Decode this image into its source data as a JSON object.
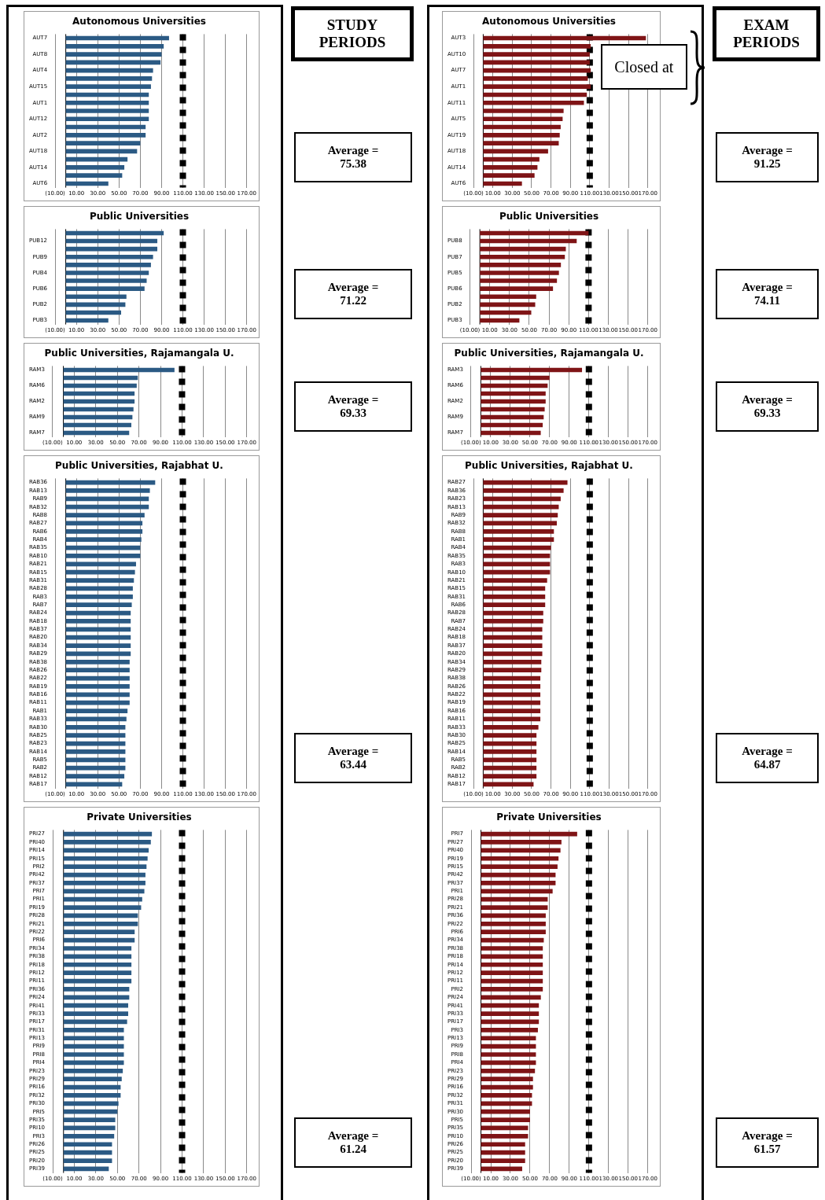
{
  "chart_data": [
    {
      "type": "other",
      "title": "STUDY PERIODS"
    },
    {
      "type": "bar",
      "orientation": "horizontal",
      "title": "Autonomous Universities",
      "categories": [
        "AUT7",
        null,
        "AUT8",
        null,
        "AUT4",
        null,
        "AUT15",
        null,
        "AUT1",
        null,
        "AUT12",
        null,
        "AUT2",
        null,
        "AUT18",
        null,
        "AUT14",
        null,
        "AUT6"
      ],
      "values": [
        97,
        92,
        90,
        89,
        82,
        81,
        80,
        78,
        78,
        78,
        78,
        75,
        75,
        70,
        67,
        58,
        55,
        53,
        40
      ],
      "color": "#2b5a84",
      "xlim": [
        -10,
        170
      ],
      "xticks": [
        {
          "value": -10,
          "label": "(10.00)"
        },
        {
          "value": 10,
          "label": "10.00"
        },
        {
          "value": 30,
          "label": "30.00"
        },
        {
          "value": 50,
          "label": "50.00"
        },
        {
          "value": 70,
          "label": "70.00"
        },
        {
          "value": 90,
          "label": "90.00"
        },
        {
          "value": 110,
          "label": "110.00"
        },
        {
          "value": 130,
          "label": "130.00"
        },
        {
          "value": 150,
          "label": "150.00"
        },
        {
          "value": 170,
          "label": "170.00"
        }
      ],
      "grid": "x",
      "ref_lines": [
        {
          "axis": "x",
          "value": 110,
          "color": "#000000",
          "line_style": "dashed"
        }
      ],
      "annotations": [
        "Average = 75.38"
      ]
    },
    {
      "type": "bar",
      "orientation": "horizontal",
      "title": "Public Universities",
      "categories": [
        null,
        "PUB12",
        null,
        "PUB9",
        null,
        "PUB4",
        null,
        "PUB6",
        null,
        "PUB2",
        null,
        "PUB3"
      ],
      "values": [
        92,
        86,
        86,
        82,
        80,
        78,
        76,
        74,
        57,
        56,
        52,
        40
      ],
      "color": "#2b5a84",
      "xlim": [
        -10,
        170
      ],
      "xticks": [
        {
          "value": -10,
          "label": "(10.00)"
        },
        {
          "value": 10,
          "label": "10.00"
        },
        {
          "value": 30,
          "label": "30.00"
        },
        {
          "value": 50,
          "label": "50.00"
        },
        {
          "value": 70,
          "label": "70.00"
        },
        {
          "value": 90,
          "label": "90.00"
        },
        {
          "value": 110,
          "label": "110.00"
        },
        {
          "value": 130,
          "label": "130.00"
        },
        {
          "value": 150,
          "label": "150.00"
        },
        {
          "value": 170,
          "label": "170.00"
        }
      ],
      "grid": "x",
      "ref_lines": [
        {
          "axis": "x",
          "value": 110,
          "color": "#000000",
          "line_style": "dashed"
        }
      ],
      "annotations": [
        "Average = 71.22"
      ]
    },
    {
      "type": "bar",
      "orientation": "horizontal",
      "title": "Public Universities, Rajamangala U.",
      "categories": [
        "RAM3",
        null,
        "RAM6",
        null,
        "RAM2",
        null,
        "RAM9",
        null,
        "RAM7"
      ],
      "values": [
        103,
        69,
        68,
        66,
        66,
        65,
        64,
        63,
        61
      ],
      "color": "#2b5a84",
      "xlim": [
        -10,
        170
      ],
      "xticks": [
        {
          "value": -10,
          "label": "(10.00)"
        },
        {
          "value": 10,
          "label": "10.00"
        },
        {
          "value": 30,
          "label": "30.00"
        },
        {
          "value": 50,
          "label": "50.00"
        },
        {
          "value": 70,
          "label": "70.00"
        },
        {
          "value": 90,
          "label": "90.00"
        },
        {
          "value": 110,
          "label": "110.00"
        },
        {
          "value": 130,
          "label": "130.00"
        },
        {
          "value": 150,
          "label": "150.00"
        },
        {
          "value": 170,
          "label": "170.00"
        }
      ],
      "grid": "x",
      "ref_lines": [
        {
          "axis": "x",
          "value": 110,
          "color": "#000000",
          "line_style": "dashed"
        }
      ],
      "annotations": [
        "Average = 69.33"
      ]
    },
    {
      "type": "bar",
      "orientation": "horizontal",
      "title": "Public Universities, Rajabhat U.",
      "categories": [
        "RAB36",
        "RAB13",
        "RAB9",
        "RAB32",
        "RAB8",
        "RAB27",
        "RAB6",
        "RAB4",
        "RAB35",
        "RAB10",
        "RAB21",
        "RAB15",
        "RAB31",
        "RAB28",
        "RAB3",
        "RAB7",
        "RAB24",
        "RAB18",
        "RAB37",
        "RAB20",
        "RAB34",
        "RAB29",
        "RAB38",
        "RAB26",
        "RAB22",
        "RAB19",
        "RAB16",
        "RAB11",
        "RAB1",
        "RAB33",
        "RAB30",
        "RAB25",
        "RAB23",
        "RAB14",
        "RAB5",
        "RAB2",
        "RAB12",
        "RAB17"
      ],
      "values": [
        84,
        79,
        78,
        78,
        74,
        72,
        72,
        71,
        70,
        70,
        66,
        65,
        64,
        63,
        63,
        62,
        61,
        61,
        61,
        61,
        61,
        61,
        60,
        60,
        60,
        60,
        60,
        60,
        58,
        57,
        56,
        56,
        56,
        56,
        56,
        56,
        55,
        53
      ],
      "color": "#2b5a84",
      "xlim": [
        -10,
        170
      ],
      "xticks": [
        {
          "value": -10,
          "label": "(10.00)"
        },
        {
          "value": 10,
          "label": "10.00"
        },
        {
          "value": 30,
          "label": "30.00"
        },
        {
          "value": 50,
          "label": "50.00"
        },
        {
          "value": 70,
          "label": "70.00"
        },
        {
          "value": 90,
          "label": "90.00"
        },
        {
          "value": 110,
          "label": "110.00"
        },
        {
          "value": 130,
          "label": "130.00"
        },
        {
          "value": 150,
          "label": "150.00"
        },
        {
          "value": 170,
          "label": "170.00"
        }
      ],
      "grid": "x",
      "ref_lines": [
        {
          "axis": "x",
          "value": 110,
          "color": "#000000",
          "line_style": "dashed"
        }
      ],
      "annotations": [
        "Average = 63.44"
      ]
    },
    {
      "type": "bar",
      "orientation": "horizontal",
      "title": "Private Universities",
      "categories": [
        "PRI27",
        "PRI40",
        "PRI14",
        "PRI15",
        "PRI2",
        "PRI42",
        "PRI37",
        "PRI7",
        "PRI1",
        "PRI19",
        "PRI28",
        "PRI21",
        "PRI22",
        "PRI6",
        "PRI34",
        "PRI38",
        "PRI18",
        "PRI12",
        "PRI11",
        "PRI36",
        "PRI24",
        "PRI41",
        "PRI33",
        "PRI17",
        "PRI31",
        "PRI13",
        "PRI9",
        "PRI8",
        "PRI4",
        "PRI23",
        "PRI29",
        "PRI16",
        "PRI32",
        "PRI30",
        "PRI5",
        "PRI35",
        "PRI10",
        "PRI3",
        "PRI26",
        "PRI25",
        "PRI20",
        "PRI39"
      ],
      "values": [
        82,
        81,
        79,
        78,
        77,
        76,
        76,
        75,
        73,
        72,
        69,
        69,
        66,
        66,
        63,
        63,
        63,
        63,
        63,
        61,
        61,
        60,
        60,
        59,
        56,
        56,
        56,
        56,
        56,
        55,
        54,
        53,
        53,
        51,
        50,
        48,
        48,
        47,
        45,
        45,
        45,
        42
      ],
      "color": "#2b5a84",
      "xlim": [
        -10,
        170
      ],
      "xticks": [
        {
          "value": -10,
          "label": "(10.00)"
        },
        {
          "value": 10,
          "label": "10.00"
        },
        {
          "value": 30,
          "label": "30.00"
        },
        {
          "value": 50,
          "label": "50.00"
        },
        {
          "value": 70,
          "label": "70.00"
        },
        {
          "value": 90,
          "label": "90.00"
        },
        {
          "value": 110,
          "label": "110.00"
        },
        {
          "value": 130,
          "label": "130.00"
        },
        {
          "value": 150,
          "label": "150.00"
        },
        {
          "value": 170,
          "label": "170.00"
        }
      ],
      "grid": "x",
      "ref_lines": [
        {
          "axis": "x",
          "value": 110,
          "color": "#000000",
          "line_style": "dashed"
        }
      ],
      "annotations": [
        "Average = 61.24"
      ]
    },
    {
      "type": "other",
      "title": "EXAM PERIODS"
    },
    {
      "type": "bar",
      "orientation": "horizontal",
      "title": "Autonomous Universities",
      "categories": [
        "AUT3",
        null,
        "AUT10",
        null,
        "AUT7",
        null,
        "AUT1",
        null,
        "AUT11",
        null,
        "AUT5",
        null,
        "AUT19",
        null,
        "AUT18",
        null,
        "AUT14",
        null,
        "AUT6"
      ],
      "values": [
        168,
        111,
        110,
        110,
        111,
        108,
        111,
        107,
        104,
        83,
        82,
        80,
        79,
        78,
        67,
        58,
        56,
        53,
        40
      ],
      "color": "#7f1416",
      "xlim": [
        -10,
        170
      ],
      "xticks": [
        {
          "value": -10,
          "label": "(10.00)"
        },
        {
          "value": 10,
          "label": "10.00"
        },
        {
          "value": 30,
          "label": "30.00"
        },
        {
          "value": 50,
          "label": "50.00"
        },
        {
          "value": 70,
          "label": "70.00"
        },
        {
          "value": 90,
          "label": "90.00"
        },
        {
          "value": 110,
          "label": "110.00"
        },
        {
          "value": 130,
          "label": "130.00"
        },
        {
          "value": 150,
          "label": "150.00"
        },
        {
          "value": 170,
          "label": "170.00"
        }
      ],
      "grid": "x",
      "ref_lines": [
        {
          "axis": "x",
          "value": 110,
          "color": "#000000",
          "line_style": "dashed"
        }
      ],
      "annotations": [
        {
          "text": "Closed at",
          "x": 110,
          "y": "AUT10"
        },
        "Average = 91.25"
      ]
    },
    {
      "type": "bar",
      "orientation": "horizontal",
      "title": "Public Universities",
      "categories": [
        null,
        "PUB8",
        null,
        "PUB7",
        null,
        "PUB5",
        null,
        "PUB6",
        null,
        "PUB2",
        null,
        "PUB3"
      ],
      "values": [
        110,
        98,
        87,
        86,
        82,
        80,
        78,
        74,
        57,
        56,
        52,
        40
      ],
      "color": "#7f1416",
      "xlim": [
        -10,
        170
      ],
      "xticks": [
        {
          "value": -10,
          "label": "(10.00)"
        },
        {
          "value": 10,
          "label": "10.00"
        },
        {
          "value": 30,
          "label": "30.00"
        },
        {
          "value": 50,
          "label": "50.00"
        },
        {
          "value": 70,
          "label": "70.00"
        },
        {
          "value": 90,
          "label": "90.00"
        },
        {
          "value": 110,
          "label": "110.00"
        },
        {
          "value": 130,
          "label": "130.00"
        },
        {
          "value": 150,
          "label": "150.00"
        },
        {
          "value": 170,
          "label": "170.00"
        }
      ],
      "grid": "x",
      "ref_lines": [
        {
          "axis": "x",
          "value": 110,
          "color": "#000000",
          "line_style": "dashed"
        }
      ],
      "annotations": [
        "Average = 74.11"
      ]
    },
    {
      "type": "bar",
      "orientation": "horizontal",
      "title": "Public Universities, Rajamangala U.",
      "categories": [
        "RAM3",
        null,
        "RAM6",
        null,
        "RAM2",
        null,
        "RAM9",
        null,
        "RAM7"
      ],
      "values": [
        103,
        70,
        68,
        66,
        66,
        65,
        64,
        63,
        61
      ],
      "color": "#7f1416",
      "xlim": [
        -10,
        170
      ],
      "xticks": [
        {
          "value": -10,
          "label": "(10.00)"
        },
        {
          "value": 10,
          "label": "10.00"
        },
        {
          "value": 30,
          "label": "30.00"
        },
        {
          "value": 50,
          "label": "50.00"
        },
        {
          "value": 70,
          "label": "70.00"
        },
        {
          "value": 90,
          "label": "90.00"
        },
        {
          "value": 110,
          "label": "110.00"
        },
        {
          "value": 130,
          "label": "130.00"
        },
        {
          "value": 150,
          "label": "150.00"
        },
        {
          "value": 170,
          "label": "170.00"
        }
      ],
      "grid": "x",
      "ref_lines": [
        {
          "axis": "x",
          "value": 110,
          "color": "#000000",
          "line_style": "dashed"
        }
      ],
      "annotations": [
        "Average = 69.33"
      ]
    },
    {
      "type": "bar",
      "orientation": "horizontal",
      "title": "Public Universities, Rajabhat U.",
      "categories": [
        "RAB27",
        "RAB36",
        "RAB23",
        "RAB13",
        "RAB9",
        "RAB32",
        "RAB8",
        "RAB1",
        "RAB4",
        "RAB35",
        "RAB3",
        "RAB10",
        "RAB21",
        "RAB15",
        "RAB31",
        "RAB6",
        "RAB28",
        "RAB7",
        "RAB24",
        "RAB18",
        "RAB37",
        "RAB20",
        "RAB34",
        "RAB29",
        "RAB38",
        "RAB26",
        "RAB22",
        "RAB19",
        "RAB16",
        "RAB11",
        "RAB33",
        "RAB30",
        "RAB25",
        "RAB14",
        "RAB5",
        "RAB2",
        "RAB12",
        "RAB17"
      ],
      "values": [
        87,
        83,
        80,
        78,
        77,
        76,
        73,
        73,
        70,
        69,
        69,
        69,
        66,
        64,
        64,
        64,
        62,
        62,
        61,
        61,
        61,
        61,
        60,
        60,
        59,
        59,
        59,
        59,
        59,
        59,
        57,
        55,
        55,
        55,
        55,
        55,
        55,
        52
      ],
      "color": "#7f1416",
      "xlim": [
        -10,
        170
      ],
      "xticks": [
        {
          "value": -10,
          "label": "(10.00)"
        },
        {
          "value": 10,
          "label": "10.00"
        },
        {
          "value": 30,
          "label": "30.00"
        },
        {
          "value": 50,
          "label": "50.00"
        },
        {
          "value": 70,
          "label": "70.00"
        },
        {
          "value": 90,
          "label": "90.00"
        },
        {
          "value": 110,
          "label": "110.00"
        },
        {
          "value": 130,
          "label": "130.00"
        },
        {
          "value": 150,
          "label": "150.00"
        },
        {
          "value": 170,
          "label": "170.00"
        }
      ],
      "grid": "x",
      "ref_lines": [
        {
          "axis": "x",
          "value": 110,
          "color": "#000000",
          "line_style": "dashed"
        }
      ],
      "annotations": [
        "Average = 64.87"
      ]
    },
    {
      "type": "bar",
      "orientation": "horizontal",
      "title": "Private Universities",
      "categories": [
        "PRI7",
        "PRI27",
        "PRI40",
        "PRI19",
        "PRI15",
        "PRI42",
        "PRI37",
        "PRI1",
        "PRI28",
        "PRI21",
        "PRI36",
        "PRI22",
        "PRI6",
        "PRI34",
        "PRI38",
        "PRI18",
        "PRI14",
        "PRI12",
        "PRI11",
        "PRI2",
        "PRI24",
        "PRI41",
        "PRI33",
        "PRI17",
        "PRI3",
        "PRI13",
        "PRI9",
        "PRI8",
        "PRI4",
        "PRI23",
        "PRI29",
        "PRI16",
        "PRI32",
        "PRI31",
        "PRI30",
        "PRI5",
        "PRI35",
        "PRI10",
        "PRI26",
        "PRI25",
        "PRI20",
        "PRI39"
      ],
      "values": [
        98,
        82,
        81,
        79,
        78,
        76,
        76,
        73,
        68,
        68,
        66,
        66,
        66,
        64,
        63,
        63,
        63,
        63,
        63,
        63,
        61,
        59,
        59,
        59,
        58,
        56,
        56,
        56,
        56,
        55,
        53,
        53,
        52,
        52,
        50,
        50,
        48,
        48,
        45,
        45,
        45,
        42
      ],
      "color": "#7f1416",
      "xlim": [
        -10,
        170
      ],
      "xticks": [
        {
          "value": -10,
          "label": "(10.00)"
        },
        {
          "value": 10,
          "label": "10.00"
        },
        {
          "value": 30,
          "label": "30.00"
        },
        {
          "value": 50,
          "label": "50.00"
        },
        {
          "value": 70,
          "label": "70.00"
        },
        {
          "value": 90,
          "label": "90.00"
        },
        {
          "value": 110,
          "label": "110.00"
        },
        {
          "value": 130,
          "label": "130.00"
        },
        {
          "value": 150,
          "label": "150.00"
        },
        {
          "value": 170,
          "label": "170.00"
        }
      ],
      "grid": "x",
      "ref_lines": [
        {
          "axis": "x",
          "value": 110,
          "color": "#000000",
          "line_style": "dashed"
        }
      ],
      "annotations": [
        "Average = 61.57"
      ]
    }
  ]
}
